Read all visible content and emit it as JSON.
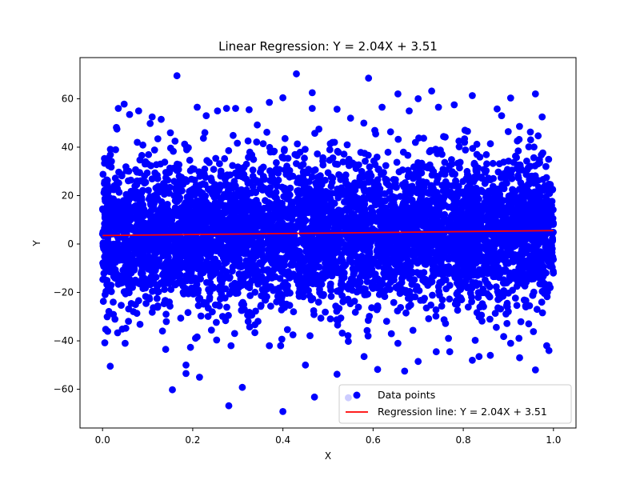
{
  "chart_data": {
    "type": "scatter",
    "title": "Linear Regression: Y = 2.04X + 3.51",
    "xlabel": "X",
    "ylabel": "Y",
    "xlim": [
      -0.05,
      1.05
    ],
    "ylim": [
      -76,
      77
    ],
    "x_ticks": [
      0.0,
      0.2,
      0.4,
      0.6,
      0.8,
      1.0
    ],
    "x_tick_labels": [
      "0.0",
      "0.2",
      "0.4",
      "0.6",
      "0.8",
      "1.0"
    ],
    "y_ticks": [
      -60,
      -40,
      -20,
      0,
      20,
      40,
      60
    ],
    "y_tick_labels": [
      "−60",
      "−40",
      "−20",
      "0",
      "20",
      "40",
      "60"
    ],
    "grid": false,
    "legend_position": "lower-right",
    "series": [
      {
        "name": "Data points",
        "kind": "scatter",
        "color": "#0000ff",
        "points": [
          [
            0.165,
            69.5
          ],
          [
            0.43,
            70.3
          ],
          [
            0.59,
            68.5
          ],
          [
            0.73,
            63.2
          ],
          [
            0.465,
            62.5
          ],
          [
            0.655,
            62.0
          ],
          [
            0.82,
            61.3
          ],
          [
            0.96,
            62.0
          ],
          [
            0.905,
            60.3
          ],
          [
            0.4,
            60.4
          ],
          [
            0.7,
            60.0
          ],
          [
            0.048,
            57.8
          ],
          [
            0.21,
            56.5
          ],
          [
            0.37,
            58.5
          ],
          [
            0.035,
            56.0
          ],
          [
            0.275,
            56.0
          ],
          [
            0.52,
            55.7
          ],
          [
            0.62,
            56.5
          ],
          [
            0.11,
            52.5
          ],
          [
            0.08,
            55.0
          ],
          [
            0.255,
            55.0
          ],
          [
            0.295,
            56.0
          ],
          [
            0.325,
            55.5
          ],
          [
            0.465,
            56.0
          ],
          [
            0.68,
            55.0
          ],
          [
            0.745,
            56.5
          ],
          [
            0.78,
            57.5
          ],
          [
            0.875,
            55.8
          ],
          [
            0.975,
            52.5
          ],
          [
            0.55,
            52.0
          ],
          [
            0.23,
            53.0
          ],
          [
            0.13,
            51.5
          ],
          [
            0.885,
            53.0
          ],
          [
            0.032,
            47.5
          ],
          [
            0.06,
            53.5
          ],
          [
            0.017,
            -50.5
          ],
          [
            0.155,
            -60.2
          ],
          [
            0.185,
            -50.0
          ],
          [
            0.185,
            -53.5
          ],
          [
            0.215,
            -55.0
          ],
          [
            0.28,
            -66.8
          ],
          [
            0.31,
            -59.2
          ],
          [
            0.4,
            -69.2
          ],
          [
            0.45,
            -50.0
          ],
          [
            0.47,
            -63.2
          ],
          [
            0.52,
            -53.8
          ],
          [
            0.545,
            -63.5
          ],
          [
            0.61,
            -51.8
          ],
          [
            0.67,
            -52.5
          ],
          [
            0.7,
            -48.5
          ],
          [
            0.82,
            -48.0
          ],
          [
            0.835,
            -46.5
          ],
          [
            0.86,
            -46.0
          ],
          [
            0.96,
            -52.0
          ],
          [
            0.925,
            -47.0
          ],
          [
            0.99,
            -44.0
          ],
          [
            0.905,
            -41.0
          ],
          [
            0.985,
            -42.0
          ],
          [
            0.74,
            -44.5
          ],
          [
            0.58,
            -46.5
          ],
          [
            0.005,
            -40.8
          ],
          [
            0.05,
            -41.0
          ],
          [
            0.14,
            -43.5
          ],
          [
            0.195,
            -42.7
          ],
          [
            0.285,
            -42.0
          ],
          [
            0.37,
            -42.0
          ],
          [
            0.395,
            -42.0
          ],
          [
            0.655,
            -41.0
          ],
          [
            0.545,
            -40.2
          ],
          [
            0.77,
            -44.5
          ]
        ]
      },
      {
        "name": "Regression line: Y = 2.04X + 3.51",
        "kind": "line",
        "color": "#ff0000",
        "slope": 2.04,
        "intercept": 3.51,
        "x_range": [
          0.0,
          1.0
        ]
      }
    ]
  }
}
